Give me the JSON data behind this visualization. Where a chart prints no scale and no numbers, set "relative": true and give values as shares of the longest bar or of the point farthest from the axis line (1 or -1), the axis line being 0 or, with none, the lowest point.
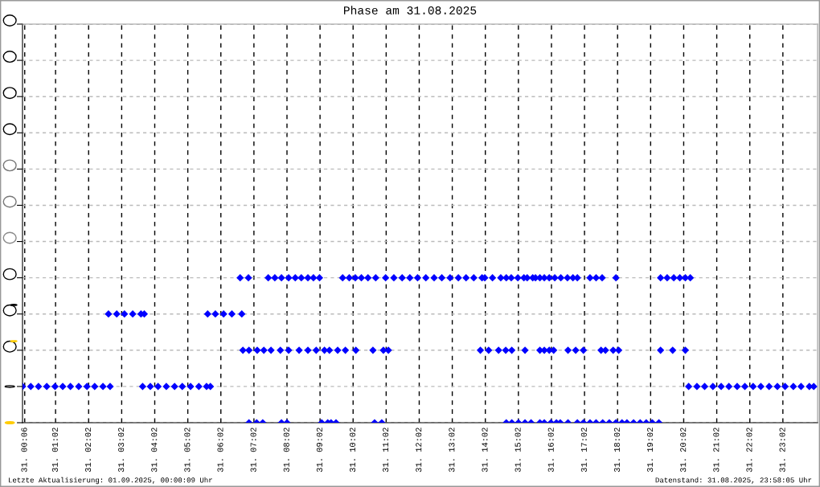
{
  "chart_data": {
    "type": "scatter",
    "title": "Phase am 31.08.2025",
    "annotations": [
      "Letzte Aktualisierung: 01.09.2025, 00:00:09 Uhr",
      "Datenstand: 31.08.2025, 23:58:05 Uhr"
    ],
    "series": [
      {
        "color": "#0000ff",
        "x": [
          "2025-08-31T00:02",
          "2025-08-31T00:17",
          "2025-08-31T00:31",
          "2025-08-31T00:46",
          "2025-08-31T01:01",
          "2025-08-31T01:15",
          "2025-08-31T01:29",
          "2025-08-31T01:44",
          "2025-08-31T01:59",
          "2025-08-31T02:13",
          "2025-08-31T02:28",
          "2025-08-31T02:41",
          "2025-08-31T03:40",
          "2025-08-31T03:54",
          "2025-08-31T04:08",
          "2025-08-31T04:23",
          "2025-08-31T04:38",
          "2025-08-31T04:52",
          "2025-08-31T05:07",
          "2025-08-31T05:22",
          "2025-08-31T05:36",
          "2025-08-31T05:43",
          "2025-08-31T20:11",
          "2025-08-31T20:26",
          "2025-08-31T20:40",
          "2025-08-31T20:55",
          "2025-08-31T21:10",
          "2025-08-31T21:24",
          "2025-08-31T21:39",
          "2025-08-31T21:53",
          "2025-08-31T22:08",
          "2025-08-31T22:22",
          "2025-08-31T22:37",
          "2025-08-31T22:52",
          "2025-08-31T23:06",
          "2025-08-31T23:21",
          "2025-08-31T23:35",
          "2025-08-31T23:50",
          "2025-08-31T23:58",
          "2025-08-31T02:38",
          "2025-08-31T02:53",
          "2025-08-31T03:07",
          "2025-08-31T03:22",
          "2025-08-31T03:37",
          "2025-08-31T03:43",
          "2025-08-31T05:38",
          "2025-08-31T05:52",
          "2025-08-31T06:07",
          "2025-08-31T06:22",
          "2025-08-31T06:40",
          "2025-08-31T06:37",
          "2025-08-31T06:52",
          "2025-08-31T07:28",
          "2025-08-31T07:40",
          "2025-08-31T07:52",
          "2025-08-31T08:05",
          "2025-08-31T08:17",
          "2025-08-31T08:28",
          "2025-08-31T08:40",
          "2025-08-31T08:50",
          "2025-08-31T09:01",
          "2025-08-31T09:43",
          "2025-08-31T09:55",
          "2025-08-31T10:06",
          "2025-08-31T10:17",
          "2025-08-31T10:29",
          "2025-08-31T10:43",
          "2025-08-31T11:01",
          "2025-08-31T11:16",
          "2025-08-31T11:31",
          "2025-08-31T11:45",
          "2025-08-31T11:59",
          "2025-08-31T12:14",
          "2025-08-31T12:29",
          "2025-08-31T12:43",
          "2025-08-31T12:58",
          "2025-08-31T13:13",
          "2025-08-31T13:27",
          "2025-08-31T13:41",
          "2025-08-31T13:56",
          "2025-08-31T14:01",
          "2025-08-31T14:15",
          "2025-08-31T14:30",
          "2025-08-31T14:40",
          "2025-08-31T14:49",
          "2025-08-31T15:01",
          "2025-08-31T15:12",
          "2025-08-31T15:18",
          "2025-08-31T15:28",
          "2025-08-31T15:33",
          "2025-08-31T15:41",
          "2025-08-31T15:49",
          "2025-08-31T15:58",
          "2025-08-31T16:08",
          "2025-08-31T16:19",
          "2025-08-31T16:31",
          "2025-08-31T16:41",
          "2025-08-31T16:49",
          "2025-08-31T17:12",
          "2025-08-31T17:23",
          "2025-08-31T17:34",
          "2025-08-31T17:59",
          "2025-08-31T19:20",
          "2025-08-31T19:32",
          "2025-08-31T19:44",
          "2025-08-31T19:55",
          "2025-08-31T20:05",
          "2025-08-31T20:14",
          "2025-08-31T06:42",
          "2025-08-31T06:53",
          "2025-08-31T07:08",
          "2025-08-31T07:20",
          "2025-08-31T07:33",
          "2025-08-31T07:50",
          "2025-08-31T08:05",
          "2025-08-31T08:24",
          "2025-08-31T08:40",
          "2025-08-31T08:55",
          "2025-08-31T09:10",
          "2025-08-31T09:19",
          "2025-08-31T09:34",
          "2025-08-31T09:48",
          "2025-08-31T10:07",
          "2025-08-31T10:38",
          "2025-08-31T10:57",
          "2025-08-31T11:06",
          "2025-08-31T13:53",
          "2025-08-31T14:08",
          "2025-08-31T14:26",
          "2025-08-31T14:39",
          "2025-08-31T14:50",
          "2025-08-31T15:14",
          "2025-08-31T15:41",
          "2025-08-31T15:49",
          "2025-08-31T15:58",
          "2025-08-31T16:06",
          "2025-08-31T16:32",
          "2025-08-31T16:46",
          "2025-08-31T17:00",
          "2025-08-31T17:32",
          "2025-08-31T17:40",
          "2025-08-31T17:54",
          "2025-08-31T18:04",
          "2025-08-31T19:20",
          "2025-08-31T19:42",
          "2025-08-31T20:05",
          "2025-08-31T06:53",
          "2025-08-31T07:07",
          "2025-08-31T07:18",
          "2025-08-31T07:52",
          "2025-08-31T08:02",
          "2025-08-31T09:05",
          "2025-08-31T09:16",
          "2025-08-31T09:22",
          "2025-08-31T09:31",
          "2025-08-31T10:41",
          "2025-08-31T10:54",
          "2025-08-31T14:40",
          "2025-08-31T14:50",
          "2025-08-31T15:02",
          "2025-08-31T15:14",
          "2025-08-31T15:25",
          "2025-08-31T15:41",
          "2025-08-31T15:49",
          "2025-08-31T16:01",
          "2025-08-31T16:11",
          "2025-08-31T16:18",
          "2025-08-31T16:32",
          "2025-08-31T16:49",
          "2025-08-31T17:00",
          "2025-08-31T17:12",
          "2025-08-31T17:23",
          "2025-08-31T17:35",
          "2025-08-31T17:47",
          "2025-08-31T17:59",
          "2025-08-31T18:10",
          "2025-08-31T18:19",
          "2025-08-31T18:31",
          "2025-08-31T18:43",
          "2025-08-31T18:54",
          "2025-08-31T19:05",
          "2025-08-31T19:17"
        ],
        "values": [
          0.25,
          0.25,
          0.25,
          0.25,
          0.25,
          0.25,
          0.25,
          0.25,
          0.25,
          0.25,
          0.25,
          0.25,
          0.25,
          0.25,
          0.25,
          0.25,
          0.25,
          0.25,
          0.25,
          0.25,
          0.25,
          0.25,
          0.25,
          0.25,
          0.25,
          0.25,
          0.25,
          0.25,
          0.25,
          0.25,
          0.25,
          0.25,
          0.25,
          0.25,
          0.25,
          0.25,
          0.25,
          0.25,
          0.25,
          0.75,
          0.75,
          0.75,
          0.75,
          0.75,
          0.75,
          0.75,
          0.75,
          0.75,
          0.75,
          0.75,
          1,
          1,
          1,
          1,
          1,
          1,
          1,
          1,
          1,
          1,
          1,
          1,
          1,
          1,
          1,
          1,
          1,
          1,
          1,
          1,
          1,
          1,
          1,
          1,
          1,
          1,
          1,
          1,
          1,
          1,
          1,
          1,
          1,
          1,
          1,
          1,
          1,
          1,
          1,
          1,
          1,
          1,
          1,
          1,
          1,
          1,
          1,
          1,
          1,
          1,
          1,
          1,
          1,
          1,
          1,
          1,
          1,
          1,
          0.5,
          0.5,
          0.5,
          0.5,
          0.5,
          0.5,
          0.5,
          0.5,
          0.5,
          0.5,
          0.5,
          0.5,
          0.5,
          0.5,
          0.5,
          0.5,
          0.5,
          0.5,
          0.5,
          0.5,
          0.5,
          0.5,
          0.5,
          0.5,
          0.5,
          0.5,
          0.5,
          0.5,
          0.5,
          0.5,
          0.5,
          0.5,
          0.5,
          0.5,
          0.5,
          0.5,
          0.5,
          0.5,
          0,
          0,
          0,
          0,
          0,
          0,
          0,
          0,
          0,
          0,
          0,
          0,
          0,
          0,
          0,
          0,
          0,
          0,
          0,
          0,
          0,
          0,
          0,
          0,
          0,
          0,
          0,
          0,
          0,
          0,
          0,
          0,
          0,
          0,
          0,
          0
        ]
      }
    ],
    "xlim": [
      "2025-08-31T00:02",
      "2025-09-01T00:05"
    ],
    "xticks": [
      {
        "value": "2025-08-31T00:06",
        "label": "31. 00:06"
      },
      {
        "value": "2025-08-31T01:02",
        "label": "31. 01:02"
      },
      {
        "value": "2025-08-31T02:02",
        "label": "31. 02:02"
      },
      {
        "value": "2025-08-31T03:02",
        "label": "31. 03:02"
      },
      {
        "value": "2025-08-31T04:02",
        "label": "31. 04:02"
      },
      {
        "value": "2025-08-31T05:02",
        "label": "31. 05:02"
      },
      {
        "value": "2025-08-31T06:02",
        "label": "31. 06:02"
      },
      {
        "value": "2025-08-31T07:02",
        "label": "31. 07:02"
      },
      {
        "value": "2025-08-31T08:02",
        "label": "31. 08:02"
      },
      {
        "value": "2025-08-31T09:02",
        "label": "31. 09:02"
      },
      {
        "value": "2025-08-31T10:02",
        "label": "31. 10:02"
      },
      {
        "value": "2025-08-31T11:02",
        "label": "31. 11:02"
      },
      {
        "value": "2025-08-31T12:02",
        "label": "31. 12:02"
      },
      {
        "value": "2025-08-31T13:02",
        "label": "31. 13:02"
      },
      {
        "value": "2025-08-31T14:02",
        "label": "31. 14:02"
      },
      {
        "value": "2025-08-31T15:02",
        "label": "31. 15:02"
      },
      {
        "value": "2025-08-31T16:02",
        "label": "31. 16:02"
      },
      {
        "value": "2025-08-31T17:02",
        "label": "31. 17:02"
      },
      {
        "value": "2025-08-31T18:02",
        "label": "31. 18:02"
      },
      {
        "value": "2025-08-31T19:02",
        "label": "31. 19:02"
      },
      {
        "value": "2025-08-31T20:02",
        "label": "31. 20:02"
      },
      {
        "value": "2025-08-31T21:02",
        "label": "31. 21:02"
      },
      {
        "value": "2025-08-31T22:02",
        "label": "31. 22:02"
      },
      {
        "value": "2025-08-31T23:02",
        "label": "31. 23:02"
      }
    ],
    "relative": true,
    "grid": true,
    "marker": "diamond"
  }
}
